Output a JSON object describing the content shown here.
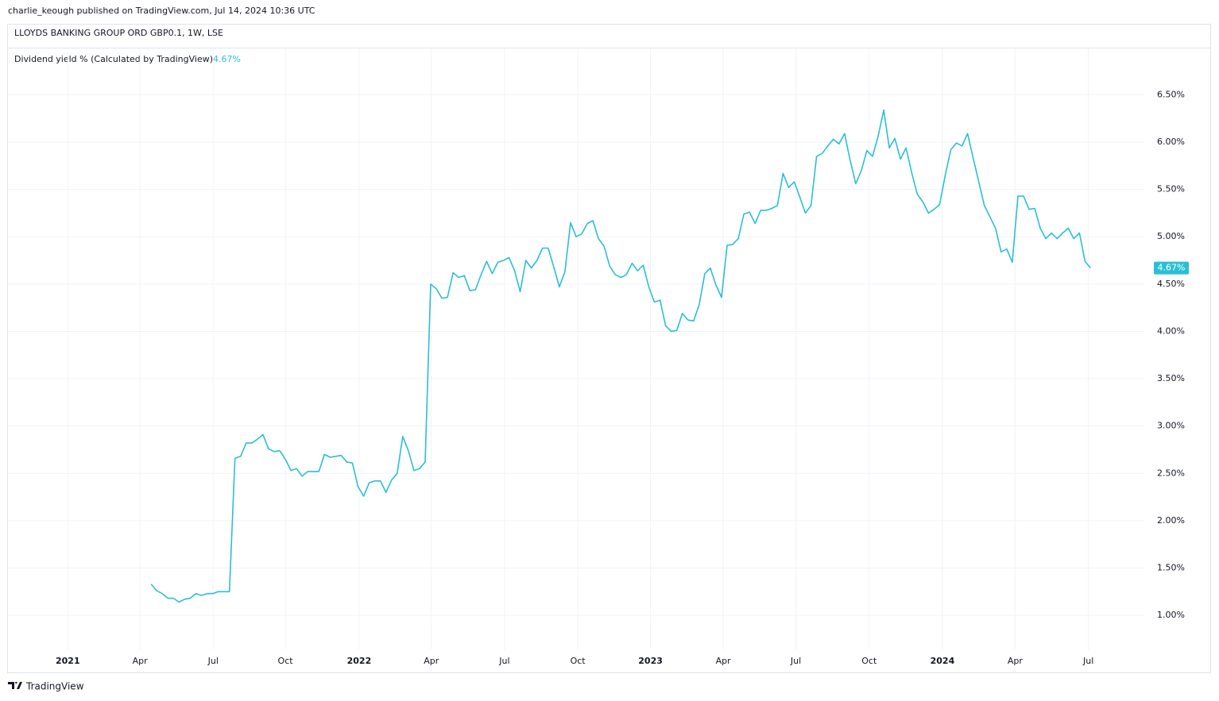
{
  "header": {
    "publisher": "charlie_keough published on TradingView.com, Jul 14, 2024 10:36 UTC",
    "symbol": "LLOYDS BANKING GROUP ORD GBP0.1, 1W, LSE"
  },
  "footer": {
    "brand": "TradingView"
  },
  "chart_data": {
    "type": "line",
    "series": [
      {
        "name": "Dividend yield % (Calculated by TradingView)",
        "color": "#2bbfd4",
        "values": [
          1.33,
          1.26,
          1.23,
          1.18,
          1.18,
          1.14,
          1.17,
          1.18,
          1.23,
          1.21,
          1.23,
          1.23,
          1.25,
          1.25,
          1.25,
          2.66,
          2.68,
          2.82,
          2.82,
          2.86,
          2.91,
          2.76,
          2.73,
          2.74,
          2.65,
          2.53,
          2.55,
          2.47,
          2.52,
          2.52,
          2.52,
          2.7,
          2.67,
          2.68,
          2.69,
          2.62,
          2.61,
          2.36,
          2.26,
          2.4,
          2.42,
          2.42,
          2.3,
          2.43,
          2.5,
          2.89,
          2.74,
          2.53,
          2.55,
          2.62,
          4.5,
          4.45,
          4.35,
          4.36,
          4.62,
          4.57,
          4.59,
          4.43,
          4.44,
          4.6,
          4.74,
          4.61,
          4.73,
          4.75,
          4.78,
          4.64,
          4.42,
          4.75,
          4.67,
          4.75,
          4.88,
          4.88,
          4.68,
          4.47,
          4.63,
          5.15,
          5.0,
          5.03,
          5.14,
          5.17,
          4.98,
          4.9,
          4.69,
          4.6,
          4.57,
          4.6,
          4.72,
          4.64,
          4.7,
          4.47,
          4.31,
          4.33,
          4.06,
          4.0,
          4.01,
          4.19,
          4.12,
          4.11,
          4.28,
          4.61,
          4.67,
          4.49,
          4.36,
          4.91,
          4.92,
          4.98,
          5.24,
          5.26,
          5.14,
          5.28,
          5.28,
          5.3,
          5.33,
          5.67,
          5.52,
          5.58,
          5.42,
          5.25,
          5.33,
          5.85,
          5.88,
          5.96,
          6.03,
          5.98,
          6.09,
          5.81,
          5.56,
          5.7,
          5.91,
          5.85,
          6.06,
          6.34,
          5.94,
          6.04,
          5.82,
          5.94,
          5.68,
          5.45,
          5.37,
          5.25,
          5.29,
          5.34,
          5.65,
          5.92,
          5.99,
          5.96,
          6.09,
          5.83,
          5.58,
          5.33,
          5.21,
          5.09,
          4.84,
          4.87,
          4.73,
          5.43,
          5.43,
          5.29,
          5.3,
          5.09,
          4.98,
          5.04,
          4.98,
          5.04,
          5.09,
          4.98,
          5.04,
          4.74,
          4.67
        ]
      }
    ],
    "last_value": {
      "value": 4.67,
      "label": "4.67%"
    },
    "xlim": [
      -25.6,
      177.6
    ],
    "xticks": [
      {
        "value": -14.9,
        "label": "2021"
      },
      {
        "value": -2.0,
        "label": "Apr"
      },
      {
        "value": 11.1,
        "label": "Jul"
      },
      {
        "value": 24.0,
        "label": "Oct"
      },
      {
        "value": 37.2,
        "label": "2022"
      },
      {
        "value": 50.1,
        "label": "Apr"
      },
      {
        "value": 63.2,
        "label": "Jul"
      },
      {
        "value": 76.3,
        "label": "Oct"
      },
      {
        "value": 89.3,
        "label": "2023"
      },
      {
        "value": 102.3,
        "label": "Apr"
      },
      {
        "value": 115.3,
        "label": "Jul"
      },
      {
        "value": 128.4,
        "label": "Oct"
      },
      {
        "value": 141.5,
        "label": "2024"
      },
      {
        "value": 154.5,
        "label": "Apr"
      },
      {
        "value": 167.6,
        "label": "Jul"
      }
    ],
    "ylim": [
      0.64,
      6.99
    ],
    "yticks": [
      {
        "value": 1.0,
        "label": "1.00%"
      },
      {
        "value": 1.5,
        "label": "1.50%"
      },
      {
        "value": 2.0,
        "label": "2.00%"
      },
      {
        "value": 2.5,
        "label": "2.50%"
      },
      {
        "value": 3.0,
        "label": "3.00%"
      },
      {
        "value": 3.5,
        "label": "3.50%"
      },
      {
        "value": 4.0,
        "label": "4.00%"
      },
      {
        "value": 4.5,
        "label": "4.50%"
      },
      {
        "value": 5.0,
        "label": "5.00%"
      },
      {
        "value": 5.5,
        "label": "5.50%"
      },
      {
        "value": 6.0,
        "label": "6.00%"
      },
      {
        "value": 6.5,
        "label": "6.50%"
      }
    ],
    "grid": true
  }
}
